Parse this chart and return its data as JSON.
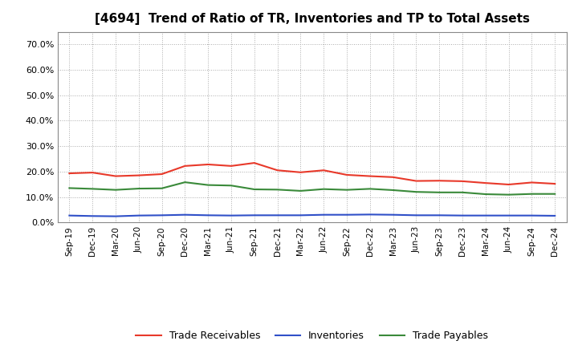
{
  "title": "[4694]  Trend of Ratio of TR, Inventories and TP to Total Assets",
  "x_labels": [
    "Sep-19",
    "Dec-19",
    "Mar-20",
    "Jun-20",
    "Sep-20",
    "Dec-20",
    "Mar-21",
    "Jun-21",
    "Sep-21",
    "Dec-21",
    "Mar-22",
    "Jun-22",
    "Sep-22",
    "Dec-22",
    "Mar-23",
    "Jun-23",
    "Sep-23",
    "Dec-23",
    "Mar-24",
    "Jun-24",
    "Sep-24",
    "Dec-24"
  ],
  "trade_receivables": [
    0.193,
    0.196,
    0.182,
    0.185,
    0.19,
    0.222,
    0.228,
    0.222,
    0.234,
    0.205,
    0.197,
    0.205,
    0.187,
    0.182,
    0.178,
    0.163,
    0.164,
    0.162,
    0.155,
    0.149,
    0.157,
    0.152
  ],
  "inventories": [
    0.027,
    0.025,
    0.024,
    0.027,
    0.028,
    0.03,
    0.028,
    0.027,
    0.028,
    0.028,
    0.028,
    0.03,
    0.03,
    0.031,
    0.03,
    0.028,
    0.028,
    0.027,
    0.027,
    0.027,
    0.027,
    0.026
  ],
  "trade_payables": [
    0.135,
    0.132,
    0.128,
    0.133,
    0.134,
    0.158,
    0.147,
    0.145,
    0.13,
    0.129,
    0.124,
    0.131,
    0.128,
    0.132,
    0.127,
    0.12,
    0.118,
    0.118,
    0.111,
    0.109,
    0.112,
    0.112
  ],
  "tr_color": "#e8392a",
  "inv_color": "#3050c8",
  "tp_color": "#3a8a3a",
  "ylim": [
    0.0,
    0.75
  ],
  "yticks": [
    0.0,
    0.1,
    0.2,
    0.3,
    0.4,
    0.5,
    0.6,
    0.7
  ],
  "bg_color": "#ffffff",
  "grid_color": "#aaaaaa",
  "legend_labels": [
    "Trade Receivables",
    "Inventories",
    "Trade Payables"
  ]
}
